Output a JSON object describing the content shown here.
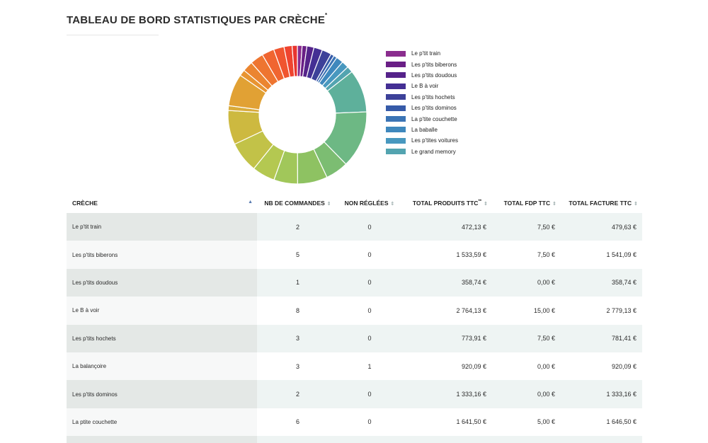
{
  "page": {
    "title": "TABLEAU DE BORD STATISTIQUES PAR CRÈCHE",
    "title_mark": "*"
  },
  "chart_data": {
    "type": "pie",
    "donut": true,
    "title": "",
    "legend_position": "right",
    "legend": [
      {
        "label": "Le p'tit train",
        "color": "#8a2d8e"
      },
      {
        "label": "Les p'tits biberons",
        "color": "#6a1f86"
      },
      {
        "label": "Les p'tits doudous",
        "color": "#55238a"
      },
      {
        "label": "Le B à voir",
        "color": "#442f94"
      },
      {
        "label": "Les p'tits hochets",
        "color": "#3d4199"
      },
      {
        "label": "Les p'tits dominos",
        "color": "#365aa8"
      },
      {
        "label": "La p'tite couchette",
        "color": "#3b74b5"
      },
      {
        "label": "La baballe",
        "color": "#3f88bd"
      },
      {
        "label": "Les p'tites voitures",
        "color": "#4898bf"
      },
      {
        "label": "Le grand memory",
        "color": "#53a4b0"
      }
    ],
    "slices": [
      {
        "value": 1.0,
        "color": "#8a2d8e"
      },
      {
        "value": 1.0,
        "color": "#6a1f86"
      },
      {
        "value": 1.5,
        "color": "#55238a"
      },
      {
        "value": 1.8,
        "color": "#442f94"
      },
      {
        "value": 2.0,
        "color": "#3d4199"
      },
      {
        "value": 0.7,
        "color": "#365aa8"
      },
      {
        "value": 0.7,
        "color": "#3b74b5"
      },
      {
        "value": 1.5,
        "color": "#3f88bd"
      },
      {
        "value": 1.5,
        "color": "#4898bf"
      },
      {
        "value": 1.3,
        "color": "#53a4b0"
      },
      {
        "value": 9.0,
        "color": "#5eb09b"
      },
      {
        "value": 12.0,
        "color": "#6db884"
      },
      {
        "value": 4.8,
        "color": "#7cbd72"
      },
      {
        "value": 6.3,
        "color": "#8ec262"
      },
      {
        "value": 5.0,
        "color": "#a1c75a"
      },
      {
        "value": 4.8,
        "color": "#b4c851"
      },
      {
        "value": 6.5,
        "color": "#c2c248"
      },
      {
        "value": 7.2,
        "color": "#cdb940"
      },
      {
        "value": 1.0,
        "color": "#d9ab3a"
      },
      {
        "value": 6.8,
        "color": "#e1a134"
      },
      {
        "value": 1.3,
        "color": "#e89431"
      },
      {
        "value": 2.2,
        "color": "#eb8530"
      },
      {
        "value": 2.8,
        "color": "#ee7530"
      },
      {
        "value": 2.6,
        "color": "#f06530"
      },
      {
        "value": 2.2,
        "color": "#f0552f"
      },
      {
        "value": 1.7,
        "color": "#ef442f"
      },
      {
        "value": 1.1,
        "color": "#e8352f"
      }
    ]
  },
  "table": {
    "columns": [
      {
        "label": "CRÈCHE",
        "sort": "▲"
      },
      {
        "label": "NB DE COMMANDES",
        "sort": "⇕"
      },
      {
        "label": "NON RÉGLÉES",
        "sort": "⇕"
      },
      {
        "label": "TOTAL PRODUITS TTC",
        "mark": "**",
        "sort": "⇕"
      },
      {
        "label": "TOTAL FDP TTC",
        "sort": "⇕"
      },
      {
        "label": "TOTAL FACTURE TTC",
        "sort": "⇕"
      }
    ],
    "rows": [
      {
        "creche": "Le p'tit train",
        "commandes": "2",
        "non_reglees": "0",
        "produits": "472,13 €",
        "fdp": "7,50 €",
        "facture": "479,63 €"
      },
      {
        "creche": "Les p'tits biberons",
        "commandes": "5",
        "non_reglees": "0",
        "produits": "1 533,59 €",
        "fdp": "7,50 €",
        "facture": "1 541,09 €"
      },
      {
        "creche": "Les p'tits doudous",
        "commandes": "1",
        "non_reglees": "0",
        "produits": "358,74 €",
        "fdp": "0,00 €",
        "facture": "358,74 €"
      },
      {
        "creche": "Le B à voir",
        "commandes": "8",
        "non_reglees": "0",
        "produits": "2 764,13 €",
        "fdp": "15,00 €",
        "facture": "2 779,13 €"
      },
      {
        "creche": "Les p'tits hochets",
        "commandes": "3",
        "non_reglees": "0",
        "produits": "773,91 €",
        "fdp": "7,50 €",
        "facture": "781,41 €"
      },
      {
        "creche": "La balançoire",
        "commandes": "3",
        "non_reglees": "1",
        "produits": "920,09 €",
        "fdp": "0,00 €",
        "facture": "920,09 €"
      },
      {
        "creche": "Les p'tits dominos",
        "commandes": "2",
        "non_reglees": "0",
        "produits": "1 333,16 €",
        "fdp": "0,00 €",
        "facture": "1 333,16 €"
      },
      {
        "creche": "La ptite couchette",
        "commandes": "6",
        "non_reglees": "0",
        "produits": "1 641,50 €",
        "fdp": "5,00 €",
        "facture": "1 646,50 €"
      }
    ]
  }
}
